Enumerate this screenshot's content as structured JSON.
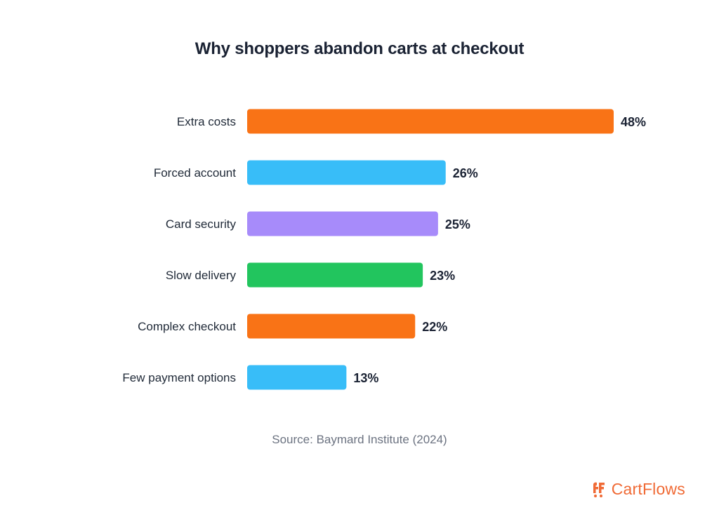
{
  "chart_data": {
    "type": "bar",
    "orientation": "horizontal",
    "title": "Why shoppers abandon carts at checkout",
    "categories": [
      "Extra costs",
      "Forced account",
      "Card security",
      "Slow delivery",
      "Complex checkout",
      "Few payment options"
    ],
    "values": [
      48,
      26,
      25,
      23,
      22,
      13
    ],
    "value_labels": [
      "48%",
      "26%",
      "25%",
      "23%",
      "22%",
      "13%"
    ],
    "colors": [
      "#f97316",
      "#38bdf8",
      "#a78bfa",
      "#22c55e",
      "#f97316",
      "#38bdf8"
    ],
    "xlim": [
      0,
      48
    ],
    "grid": false
  },
  "source": "Source: Baymard Institute (2024)",
  "brand": {
    "name": "CartFlows",
    "icon": "cartflows-logo-icon",
    "color": "#f06a35"
  }
}
